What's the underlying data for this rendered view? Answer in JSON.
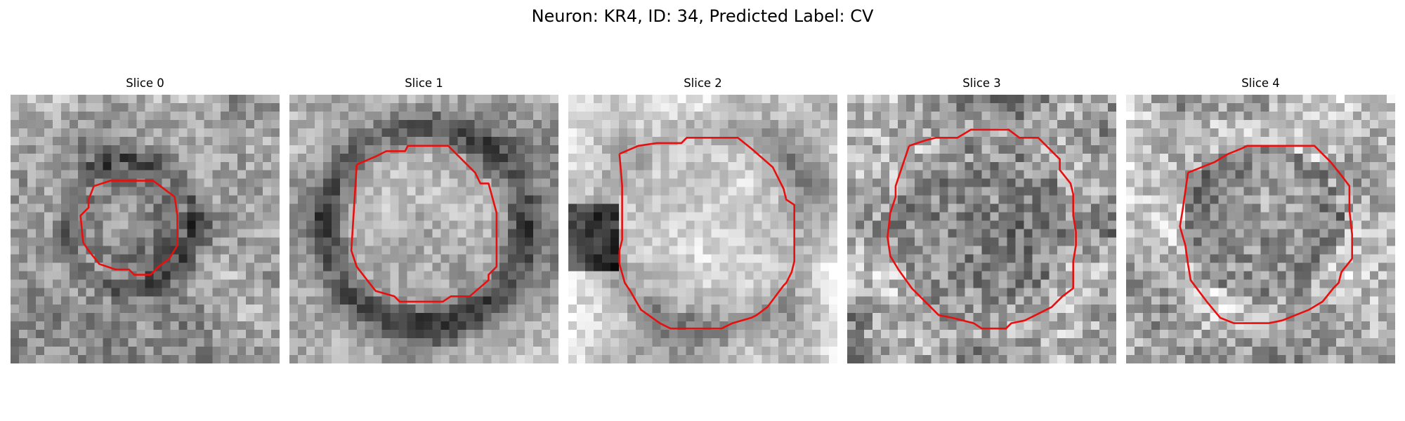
{
  "figure": {
    "title": "Neuron: KR4, ID: 34, Predicted Label: CV",
    "contour_color": "#e8100f",
    "colormap": "gray",
    "grid_resolution": 32,
    "slices": [
      {
        "title": "Slice 0",
        "center": [
          0.45,
          0.48
        ],
        "radius": 0.19,
        "interior": "dark",
        "noise": 0.16,
        "background": "textured",
        "contour": [
          [
            0.31,
            0.34
          ],
          [
            0.37,
            0.32
          ],
          [
            0.53,
            0.32
          ],
          [
            0.61,
            0.38
          ],
          [
            0.62,
            0.45
          ],
          [
            0.62,
            0.56
          ],
          [
            0.59,
            0.61
          ],
          [
            0.55,
            0.64
          ],
          [
            0.52,
            0.67
          ],
          [
            0.46,
            0.67
          ],
          [
            0.44,
            0.65
          ],
          [
            0.39,
            0.65
          ],
          [
            0.36,
            0.64
          ],
          [
            0.33,
            0.63
          ],
          [
            0.29,
            0.58
          ],
          [
            0.27,
            0.55
          ],
          [
            0.26,
            0.45
          ],
          [
            0.29,
            0.42
          ],
          [
            0.29,
            0.39
          ]
        ]
      },
      {
        "title": "Slice 1",
        "center": [
          0.5,
          0.49
        ],
        "radius": 0.3,
        "interior": "light",
        "noise": 0.13,
        "background": "dark-ring",
        "contour": [
          [
            0.25,
            0.26
          ],
          [
            0.32,
            0.23
          ],
          [
            0.36,
            0.21
          ],
          [
            0.43,
            0.21
          ],
          [
            0.44,
            0.19
          ],
          [
            0.59,
            0.19
          ],
          [
            0.62,
            0.22
          ],
          [
            0.69,
            0.29
          ],
          [
            0.71,
            0.33
          ],
          [
            0.74,
            0.33
          ],
          [
            0.77,
            0.44
          ],
          [
            0.77,
            0.64
          ],
          [
            0.74,
            0.67
          ],
          [
            0.74,
            0.69
          ],
          [
            0.67,
            0.75
          ],
          [
            0.6,
            0.75
          ],
          [
            0.57,
            0.77
          ],
          [
            0.41,
            0.77
          ],
          [
            0.39,
            0.75
          ],
          [
            0.32,
            0.73
          ],
          [
            0.25,
            0.64
          ],
          [
            0.23,
            0.58
          ]
        ]
      },
      {
        "title": "Slice 2",
        "center": [
          0.52,
          0.5
        ],
        "radius": 0.33,
        "interior": "light",
        "noise": 0.12,
        "background": "bright-left-dark",
        "contour": [
          [
            0.19,
            0.22
          ],
          [
            0.26,
            0.19
          ],
          [
            0.33,
            0.18
          ],
          [
            0.42,
            0.18
          ],
          [
            0.44,
            0.16
          ],
          [
            0.63,
            0.16
          ],
          [
            0.68,
            0.2
          ],
          [
            0.76,
            0.27
          ],
          [
            0.8,
            0.35
          ],
          [
            0.81,
            0.39
          ],
          [
            0.84,
            0.41
          ],
          [
            0.84,
            0.62
          ],
          [
            0.83,
            0.66
          ],
          [
            0.81,
            0.7
          ],
          [
            0.8,
            0.71
          ],
          [
            0.74,
            0.79
          ],
          [
            0.7,
            0.82
          ],
          [
            0.68,
            0.83
          ],
          [
            0.61,
            0.85
          ],
          [
            0.57,
            0.87
          ],
          [
            0.38,
            0.87
          ],
          [
            0.34,
            0.85
          ],
          [
            0.27,
            0.8
          ],
          [
            0.23,
            0.73
          ],
          [
            0.21,
            0.7
          ],
          [
            0.19,
            0.63
          ],
          [
            0.19,
            0.58
          ],
          [
            0.2,
            0.54
          ],
          [
            0.2,
            0.34
          ]
        ]
      },
      {
        "title": "Slice 3",
        "center": [
          0.5,
          0.5
        ],
        "radius": 0.34,
        "interior": "mid",
        "noise": 0.22,
        "background": "noisy",
        "contour": [
          [
            0.23,
            0.19
          ],
          [
            0.29,
            0.17
          ],
          [
            0.33,
            0.16
          ],
          [
            0.41,
            0.16
          ],
          [
            0.46,
            0.13
          ],
          [
            0.6,
            0.13
          ],
          [
            0.64,
            0.16
          ],
          [
            0.71,
            0.16
          ],
          [
            0.79,
            0.24
          ],
          [
            0.79,
            0.28
          ],
          [
            0.83,
            0.33
          ],
          [
            0.84,
            0.37
          ],
          [
            0.84,
            0.45
          ],
          [
            0.85,
            0.51
          ],
          [
            0.85,
            0.56
          ],
          [
            0.84,
            0.62
          ],
          [
            0.84,
            0.72
          ],
          [
            0.8,
            0.75
          ],
          [
            0.76,
            0.79
          ],
          [
            0.7,
            0.82
          ],
          [
            0.66,
            0.84
          ],
          [
            0.61,
            0.85
          ],
          [
            0.59,
            0.87
          ],
          [
            0.5,
            0.87
          ],
          [
            0.47,
            0.85
          ],
          [
            0.39,
            0.83
          ],
          [
            0.34,
            0.82
          ],
          [
            0.29,
            0.77
          ],
          [
            0.24,
            0.72
          ],
          [
            0.19,
            0.65
          ],
          [
            0.16,
            0.6
          ],
          [
            0.15,
            0.53
          ],
          [
            0.16,
            0.44
          ],
          [
            0.18,
            0.38
          ],
          [
            0.18,
            0.34
          ]
        ]
      },
      {
        "title": "Slice 4",
        "center": [
          0.51,
          0.48
        ],
        "radius": 0.29,
        "interior": "dark",
        "noise": 0.2,
        "background": "noisy-light",
        "contour": [
          [
            0.23,
            0.29
          ],
          [
            0.28,
            0.27
          ],
          [
            0.33,
            0.25
          ],
          [
            0.38,
            0.22
          ],
          [
            0.43,
            0.2
          ],
          [
            0.45,
            0.19
          ],
          [
            0.7,
            0.19
          ],
          [
            0.76,
            0.25
          ],
          [
            0.8,
            0.3
          ],
          [
            0.83,
            0.34
          ],
          [
            0.83,
            0.43
          ],
          [
            0.84,
            0.52
          ],
          [
            0.84,
            0.61
          ],
          [
            0.8,
            0.66
          ],
          [
            0.79,
            0.7
          ],
          [
            0.77,
            0.72
          ],
          [
            0.73,
            0.77
          ],
          [
            0.68,
            0.8
          ],
          [
            0.63,
            0.82
          ],
          [
            0.58,
            0.84
          ],
          [
            0.53,
            0.85
          ],
          [
            0.4,
            0.85
          ],
          [
            0.35,
            0.83
          ],
          [
            0.3,
            0.77
          ],
          [
            0.24,
            0.69
          ],
          [
            0.23,
            0.63
          ],
          [
            0.22,
            0.56
          ],
          [
            0.2,
            0.49
          ],
          [
            0.21,
            0.43
          ]
        ]
      }
    ]
  }
}
